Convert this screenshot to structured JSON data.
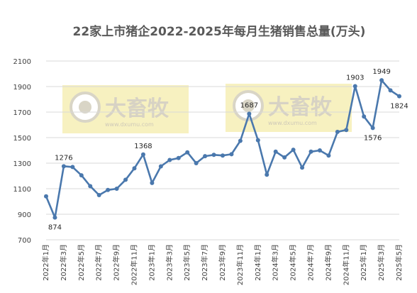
{
  "chart_data": {
    "type": "line",
    "title": "22家上市猪企2022-2025年每月生猪销售总量(万头)",
    "xlabel": "",
    "ylabel": "",
    "ylim": [
      700,
      2100
    ],
    "yticks": [
      700,
      900,
      1100,
      1300,
      1500,
      1700,
      1900,
      2100
    ],
    "grid": true,
    "legend": "none",
    "x_tick_labels": [
      "2022年1月",
      "2022年3月",
      "2022年5月",
      "2022年7月",
      "2022年9月",
      "2022年11月",
      "2023年1月",
      "2023年3月",
      "2023年5月",
      "2023年7月",
      "2023年9月",
      "2023年11月",
      "2024年1月",
      "2024年3月",
      "2024年5月",
      "2024年7月",
      "2024年9月",
      "2024年11月",
      "2025年1月",
      "2025年3月",
      "2025年5月"
    ],
    "categories": [
      "2022年1月",
      "2022年2月",
      "2022年3月",
      "2022年4月",
      "2022年5月",
      "2022年6月",
      "2022年7月",
      "2022年8月",
      "2022年9月",
      "2022年10月",
      "2022年11月",
      "2022年12月",
      "2023年1月",
      "2023年2月",
      "2023年3月",
      "2023年4月",
      "2023年5月",
      "2023年6月",
      "2023年7月",
      "2023年8月",
      "2023年9月",
      "2023年10月",
      "2023年11月",
      "2023年12月",
      "2024年1月",
      "2024年2月",
      "2024年3月",
      "2024年4月",
      "2024年5月",
      "2024年6月",
      "2024年7月",
      "2024年8月",
      "2024年9月",
      "2024年10月",
      "2024年11月",
      "2024年12月",
      "2025年1月",
      "2025年2月",
      "2025年3月",
      "2025年4月",
      "2025年5月"
    ],
    "series": [
      {
        "color": "#4a78ad",
        "values": [
          1040,
          874,
          1276,
          1270,
          1205,
          1120,
          1050,
          1090,
          1100,
          1170,
          1260,
          1368,
          1145,
          1275,
          1325,
          1340,
          1385,
          1300,
          1355,
          1365,
          1360,
          1370,
          1475,
          1687,
          1480,
          1210,
          1390,
          1345,
          1405,
          1265,
          1390,
          1400,
          1360,
          1545,
          1560,
          1903,
          1665,
          1576,
          1949,
          1870,
          1824
        ]
      }
    ],
    "data_labels": [
      {
        "index": 1,
        "text": "874",
        "position": "below"
      },
      {
        "index": 2,
        "text": "1276",
        "position": "above"
      },
      {
        "index": 11,
        "text": "1368",
        "position": "above"
      },
      {
        "index": 23,
        "text": "1687",
        "position": "above"
      },
      {
        "index": 35,
        "text": "1903",
        "position": "above"
      },
      {
        "index": 37,
        "text": "1576",
        "position": "below"
      },
      {
        "index": 38,
        "text": "1949",
        "position": "above"
      },
      {
        "index": 40,
        "text": "1824",
        "position": "below"
      }
    ]
  },
  "watermark": {
    "brand": "大畜牧",
    "url": "www.dxumu.com",
    "background_color": "#f7f1c0"
  },
  "colors": {
    "line": "#4a78ad",
    "grid": "#d9d9d9",
    "title": "#595959"
  }
}
